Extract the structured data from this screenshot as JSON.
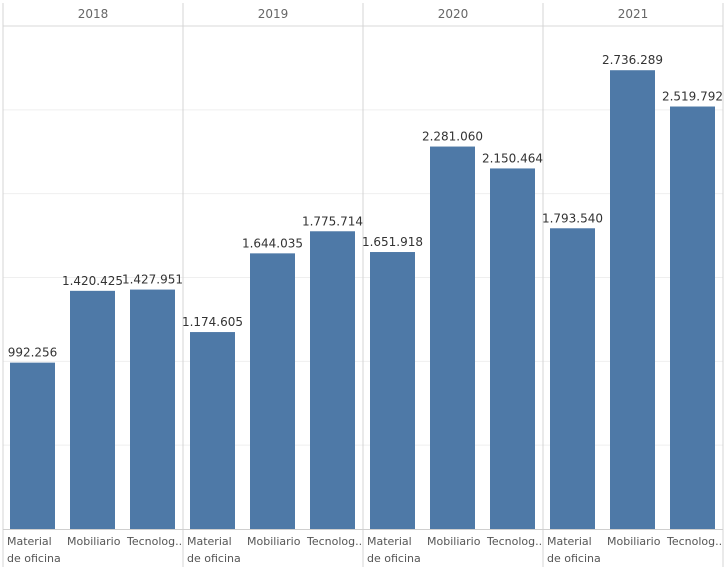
{
  "chart_data": {
    "type": "bar",
    "groups": [
      "2018",
      "2019",
      "2020",
      "2021"
    ],
    "categories": [
      "Material de oficina",
      "Mobiliario",
      "Tecnolog.."
    ],
    "category_label_lines": [
      [
        "Material",
        "de oficina"
      ],
      [
        "Mobiliario"
      ],
      [
        "Tecnolog.."
      ]
    ],
    "series": [
      {
        "group": "2018",
        "values": [
          992256,
          1420425,
          1427951
        ],
        "labels": [
          "992.256",
          "1.420.425",
          "1.427.951"
        ]
      },
      {
        "group": "2019",
        "values": [
          1174605,
          1644035,
          1775714
        ],
        "labels": [
          "1.174.605",
          "1.644.035",
          "1.775.714"
        ]
      },
      {
        "group": "2020",
        "values": [
          1651918,
          2281060,
          2150464
        ],
        "labels": [
          "1.651.918",
          "2.281.060",
          "2.150.464"
        ]
      },
      {
        "group": "2021",
        "values": [
          1793540,
          2736289,
          2519792
        ],
        "labels": [
          "1.793.540",
          "2.736.289",
          "2.519.792"
        ]
      }
    ],
    "ylim": [
      0,
      3000000
    ],
    "grid": true,
    "bar_color": "#4e79a7",
    "title": "",
    "xlabel": "",
    "ylabel": ""
  }
}
